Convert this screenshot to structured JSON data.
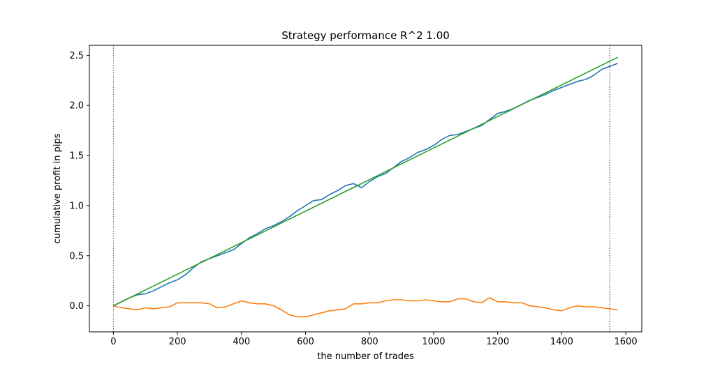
{
  "chart_data": {
    "type": "line",
    "title": "Strategy performance R^2 1.00",
    "xlabel": "the number of trades",
    "ylabel": "cumulative profit in pips",
    "xlim": [
      -75,
      1650
    ],
    "ylim": [
      -0.26,
      2.6
    ],
    "xticks": [
      0,
      200,
      400,
      600,
      800,
      1000,
      1200,
      1400,
      1600
    ],
    "yticks": [
      0.0,
      0.5,
      1.0,
      1.5,
      2.0,
      2.5
    ],
    "ytick_labels": [
      "0.0",
      "0.5",
      "1.0",
      "1.5",
      "2.0",
      "2.5"
    ],
    "grid": false,
    "vlines": [
      {
        "x": 0,
        "color": "#d62728",
        "style": "dotted"
      },
      {
        "x": 1550,
        "color": "#4b1c8c",
        "style": "dotted"
      }
    ],
    "series": [
      {
        "color": "#1f77b4",
        "x": [
          0,
          25,
          50,
          75,
          100,
          125,
          150,
          175,
          200,
          225,
          250,
          275,
          300,
          325,
          350,
          375,
          400,
          425,
          450,
          475,
          500,
          525,
          550,
          575,
          600,
          625,
          650,
          675,
          700,
          725,
          750,
          775,
          800,
          825,
          850,
          875,
          900,
          925,
          950,
          975,
          1000,
          1025,
          1050,
          1075,
          1100,
          1125,
          1150,
          1175,
          1200,
          1225,
          1250,
          1275,
          1300,
          1325,
          1350,
          1375,
          1400,
          1425,
          1450,
          1475,
          1500,
          1525,
          1550,
          1575
        ],
        "y": [
          0.0,
          0.04,
          0.08,
          0.11,
          0.12,
          0.15,
          0.19,
          0.23,
          0.26,
          0.31,
          0.38,
          0.44,
          0.47,
          0.5,
          0.53,
          0.56,
          0.62,
          0.68,
          0.72,
          0.77,
          0.8,
          0.84,
          0.89,
          0.95,
          1.0,
          1.05,
          1.06,
          1.11,
          1.15,
          1.2,
          1.22,
          1.18,
          1.24,
          1.29,
          1.32,
          1.38,
          1.44,
          1.48,
          1.53,
          1.56,
          1.6,
          1.66,
          1.7,
          1.71,
          1.74,
          1.77,
          1.8,
          1.86,
          1.92,
          1.94,
          1.97,
          2.01,
          2.05,
          2.08,
          2.11,
          2.15,
          2.18,
          2.21,
          2.24,
          2.26,
          2.3,
          2.36,
          2.39,
          2.42
        ]
      },
      {
        "color": "#ff7f0e",
        "x": [
          0,
          25,
          50,
          75,
          100,
          125,
          150,
          175,
          200,
          225,
          250,
          275,
          300,
          325,
          350,
          375,
          400,
          425,
          450,
          475,
          500,
          525,
          550,
          575,
          600,
          625,
          650,
          675,
          700,
          725,
          750,
          775,
          800,
          825,
          850,
          875,
          900,
          925,
          950,
          975,
          1000,
          1025,
          1050,
          1075,
          1100,
          1125,
          1150,
          1175,
          1200,
          1225,
          1250,
          1275,
          1300,
          1325,
          1350,
          1375,
          1400,
          1425,
          1450,
          1475,
          1500,
          1525,
          1550,
          1575
        ],
        "y": [
          0.0,
          -0.02,
          -0.03,
          -0.04,
          -0.02,
          -0.03,
          -0.02,
          -0.01,
          0.03,
          0.03,
          0.03,
          0.03,
          0.02,
          -0.02,
          -0.01,
          0.02,
          0.05,
          0.03,
          0.02,
          0.02,
          0.0,
          -0.04,
          -0.09,
          -0.11,
          -0.11,
          -0.09,
          -0.07,
          -0.05,
          -0.04,
          -0.03,
          0.02,
          0.02,
          0.03,
          0.03,
          0.05,
          0.06,
          0.06,
          0.05,
          0.05,
          0.06,
          0.05,
          0.04,
          0.04,
          0.07,
          0.07,
          0.04,
          0.03,
          0.08,
          0.04,
          0.04,
          0.03,
          0.03,
          0.0,
          -0.01,
          -0.02,
          -0.04,
          -0.05,
          -0.02,
          0.0,
          -0.01,
          -0.01,
          -0.02,
          -0.03,
          -0.04
        ]
      },
      {
        "color": "#2ca02c",
        "x": [
          0,
          1575
        ],
        "y": [
          0.0,
          2.48
        ]
      }
    ]
  }
}
